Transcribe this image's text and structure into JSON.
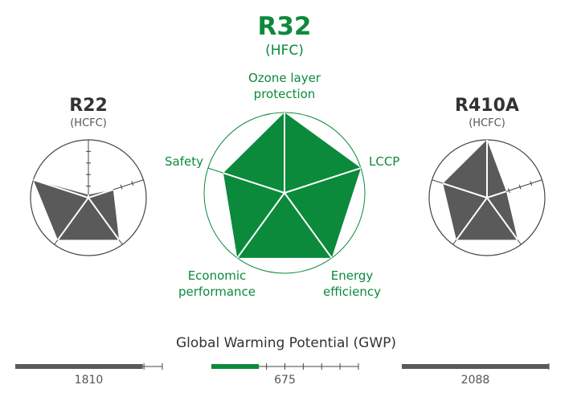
{
  "colors": {
    "green": "#0b8a3c",
    "gray": "#5a5a5a",
    "label_gray": "#333333",
    "sub_gray": "#555555",
    "ring": "#444444",
    "green_ring": "#0b8a3c"
  },
  "chart_data": [
    {
      "type": "radar",
      "name": "R22",
      "subtitle": "(HCFC)",
      "axes": [
        "Ozone layer protection",
        "LCCP",
        "Energy efficiency",
        "Economic performance",
        "Safety"
      ],
      "values": [
        0.05,
        0.45,
        0.9,
        0.9,
        1.0
      ]
    },
    {
      "type": "radar",
      "name": "R32",
      "subtitle": "(HFC)",
      "axes": [
        "Ozone layer protection",
        "LCCP",
        "Energy efficiency",
        "Economic performance",
        "Safety"
      ],
      "axis_labels": [
        [
          "Ozone layer",
          "protection"
        ],
        [
          "LCCP"
        ],
        [
          "Energy",
          "efficiency"
        ],
        [
          "Economic",
          "performance"
        ],
        [
          "Safety"
        ]
      ],
      "values": [
        1.0,
        1.0,
        1.0,
        1.0,
        0.8
      ]
    },
    {
      "type": "radar",
      "name": "R410A",
      "subtitle": "(HCFC)",
      "axes": [
        "Ozone layer protection",
        "LCCP",
        "Energy efficiency",
        "Economic performance",
        "Safety"
      ],
      "values": [
        1.0,
        0.35,
        0.9,
        0.9,
        0.8
      ]
    },
    {
      "type": "bar",
      "title": "Global Warming Potential (GWP)",
      "categories": [
        "R22",
        "R32",
        "R410A"
      ],
      "values": [
        1810,
        675,
        2088
      ],
      "value_labels": [
        "1810",
        "675",
        "2088"
      ],
      "xlim": [
        0,
        2088
      ]
    }
  ]
}
